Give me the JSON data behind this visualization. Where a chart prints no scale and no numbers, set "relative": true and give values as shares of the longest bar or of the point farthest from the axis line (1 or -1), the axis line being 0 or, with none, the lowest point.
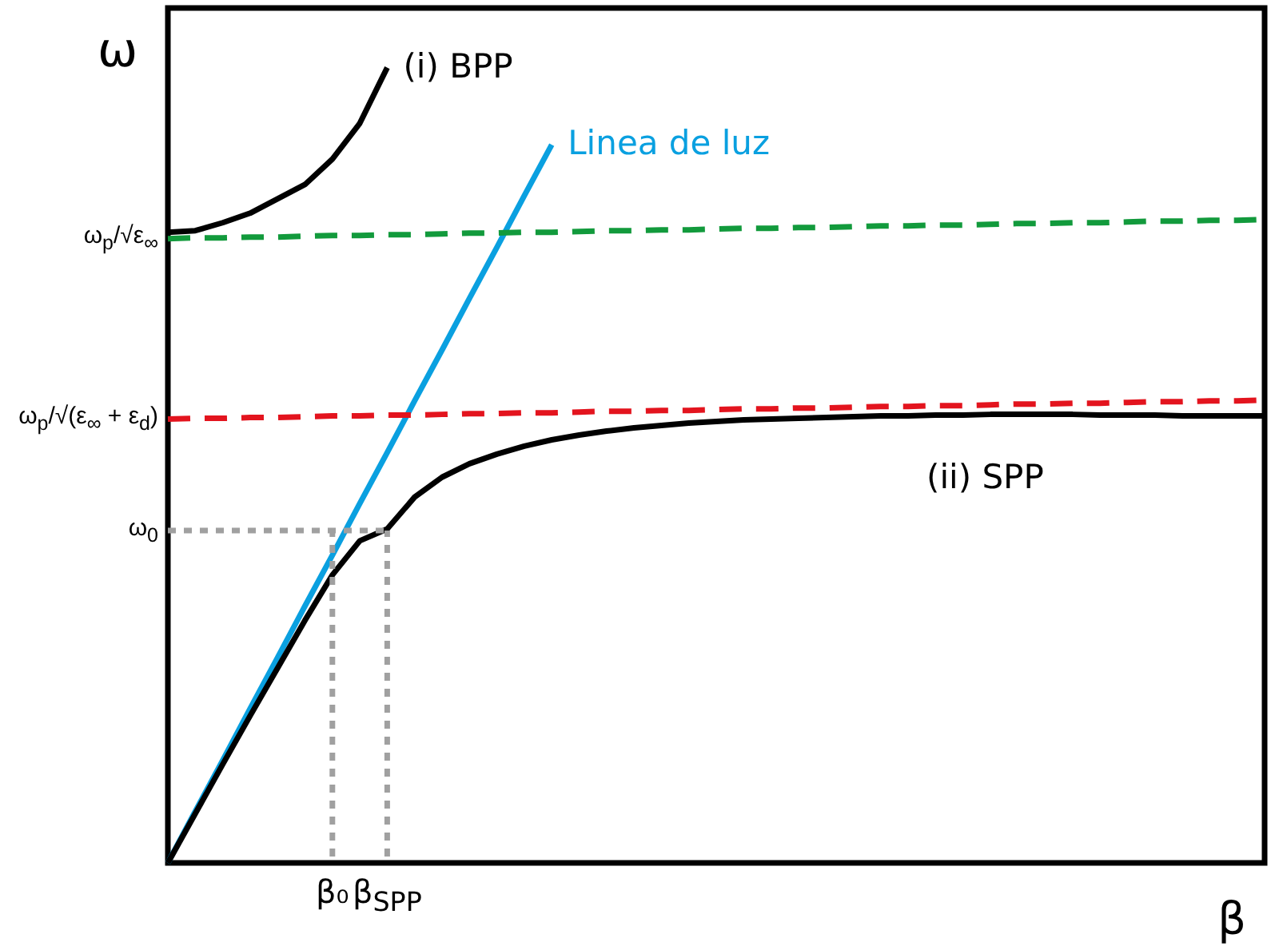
{
  "chart_data": {
    "type": "line",
    "relative": true,
    "xlabel": "β",
    "ylabel": "ω",
    "categories": [
      null,
      null,
      null,
      null,
      null,
      null,
      "β₀",
      null,
      "β$_{SPP}$",
      null,
      null,
      null,
      null,
      null,
      null,
      null,
      null,
      null,
      null,
      null,
      null,
      null,
      null,
      null,
      null,
      null,
      null,
      null,
      null,
      null,
      null,
      null,
      null,
      null,
      null,
      null,
      null,
      null,
      null,
      null,
      null
    ],
    "series": [
      {
        "name": "(i) BPP",
        "color": "#000000",
        "line_style": "solid",
        "values": [
          0.793,
          0.795,
          0.805,
          0.817,
          0.835,
          0.853,
          0.885,
          0.93,
          1,
          null,
          null,
          null,
          null,
          null,
          null,
          null,
          null,
          null,
          null,
          null,
          null,
          null,
          null,
          null,
          null,
          null,
          null,
          null,
          null,
          null,
          null,
          null,
          null,
          null,
          null,
          null,
          null,
          null,
          null,
          null,
          null
        ]
      },
      {
        "name": "Linea de luz",
        "color": "#0aa0e0",
        "line_style": "solid",
        "values": [
          0,
          0.065,
          0.129,
          0.194,
          0.258,
          0.323,
          0.387,
          0.452,
          0.516,
          0.581,
          0.645,
          0.71,
          0.774,
          0.839,
          0.903,
          null,
          null,
          null,
          null,
          null,
          null,
          null,
          null,
          null,
          null,
          null,
          null,
          null,
          null,
          null,
          null,
          null,
          null,
          null,
          null,
          null,
          null,
          null,
          null,
          null,
          null
        ]
      },
      {
        "color": "#129a3c",
        "line_style": "dashed",
        "values": [
          0.785,
          0.786,
          0.786,
          0.787,
          0.787,
          0.788,
          0.789,
          0.789,
          0.79,
          0.79,
          0.791,
          0.792,
          0.792,
          0.793,
          0.793,
          0.794,
          0.795,
          0.795,
          0.796,
          0.796,
          0.797,
          0.798,
          0.798,
          0.799,
          0.799,
          0.8,
          0.801,
          0.801,
          0.802,
          0.802,
          0.803,
          0.804,
          0.804,
          0.805,
          0.805,
          0.806,
          0.807,
          0.807,
          0.808,
          0.808,
          0.809
        ]
      },
      {
        "color": "#e3141e",
        "line_style": "dashed",
        "values": [
          0.558,
          0.559,
          0.559,
          0.56,
          0.56,
          0.561,
          0.562,
          0.562,
          0.563,
          0.563,
          0.564,
          0.565,
          0.565,
          0.566,
          0.566,
          0.567,
          0.568,
          0.568,
          0.569,
          0.569,
          0.57,
          0.571,
          0.571,
          0.572,
          0.572,
          0.573,
          0.574,
          0.574,
          0.575,
          0.575,
          0.576,
          0.577,
          0.577,
          0.578,
          0.578,
          0.579,
          0.58,
          0.58,
          0.581,
          0.581,
          0.582
        ]
      },
      {
        "name": "(ii) SPP",
        "color": "#000000",
        "line_style": "solid",
        "values": [
          0,
          0.062,
          0.124,
          0.185,
          0.245,
          0.305,
          0.362,
          0.405,
          0.42,
          0.46,
          0.485,
          0.502,
          0.514,
          0.524,
          0.532,
          0.538,
          0.543,
          0.547,
          0.55,
          0.553,
          0.555,
          0.557,
          0.558,
          0.559,
          0.56,
          0.561,
          0.562,
          0.562,
          0.563,
          0.563,
          0.564,
          0.564,
          0.564,
          0.564,
          0.563,
          0.563,
          0.563,
          0.562,
          0.562,
          0.562,
          0.562
        ]
      },
      {
        "color": "#a0a0a0",
        "line_style": "dotted",
        "values": [
          0.418,
          0.418,
          0.418,
          0.418,
          0.418,
          0.418,
          0.418,
          0.418,
          0.418,
          null,
          null,
          null,
          null,
          null,
          null,
          null,
          null,
          null,
          null,
          null,
          null,
          null,
          null,
          null,
          null,
          null,
          null,
          null,
          null,
          null,
          null,
          null,
          null,
          null,
          null,
          null,
          null,
          null,
          null,
          null,
          null
        ]
      }
    ],
    "ref_lines": [
      {
        "axis": "x",
        "value": "β₀",
        "color": "#a0a0a0",
        "line_style": "dotted"
      },
      {
        "axis": "x",
        "value": "β$_{SPP}$",
        "color": "#a0a0a0",
        "line_style": "dotted"
      }
    ],
    "annotations": [
      "ω$_{p}$/√ε$_{∞}$",
      "ω$_{p}$/√(ε$_{∞}$ + ε$_{d}$)",
      "ω$_{0}$"
    ]
  }
}
